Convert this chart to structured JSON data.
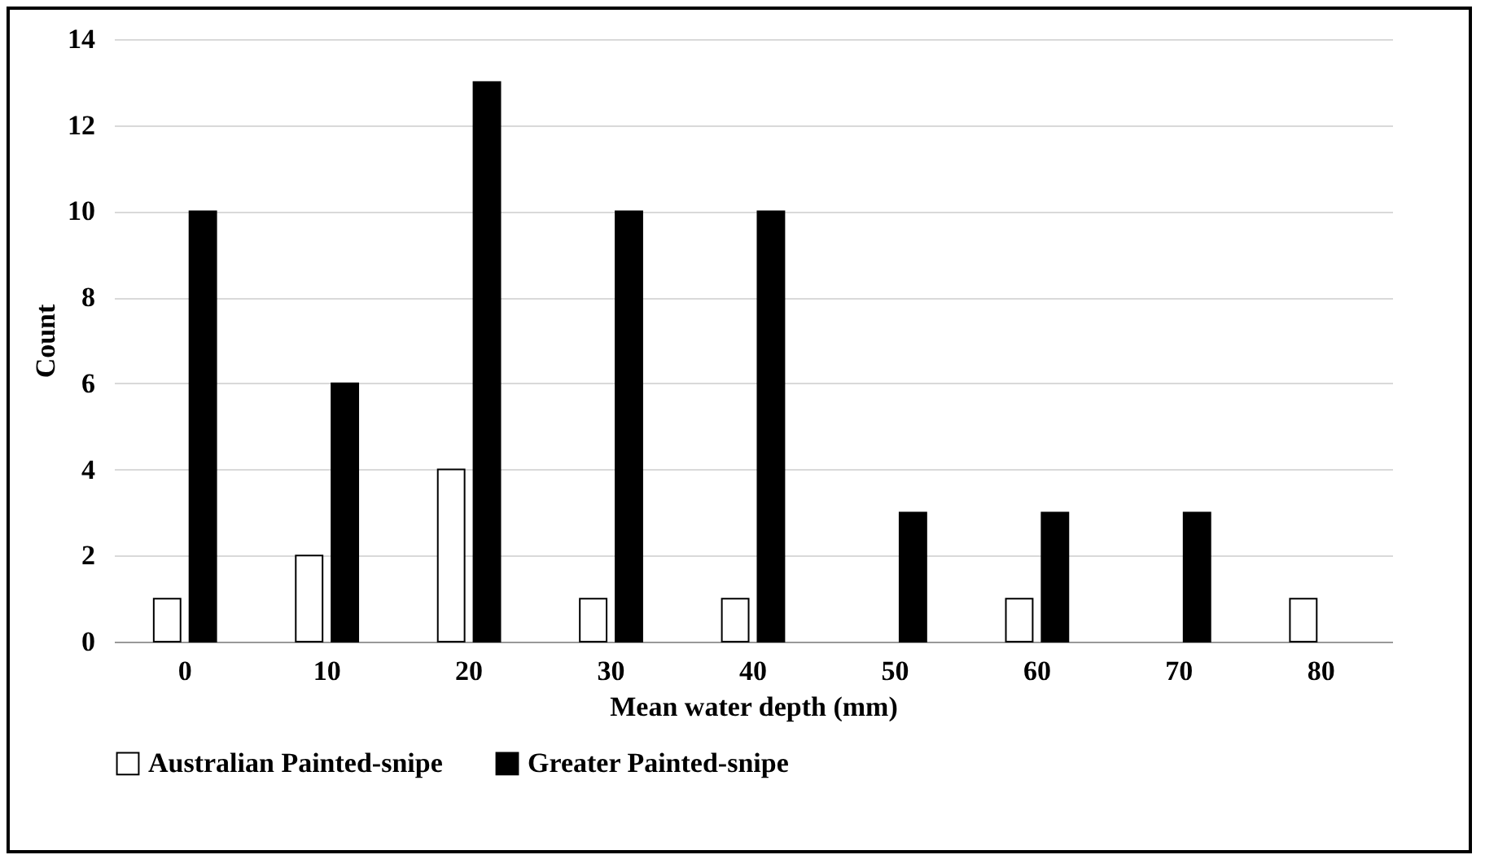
{
  "chart_data": {
    "type": "bar",
    "xlabel": "Mean water depth (mm)",
    "ylabel": "Count",
    "categories": [
      "0",
      "10",
      "20",
      "30",
      "40",
      "50",
      "60",
      "70",
      "80"
    ],
    "series": [
      {
        "name": "Australian Painted-snipe",
        "color": "#ffffff",
        "values": [
          1,
          2,
          4,
          1,
          1,
          null,
          1,
          null,
          1
        ]
      },
      {
        "name": "Greater Painted-snipe",
        "color": "#000000",
        "values": [
          10,
          6,
          13,
          10,
          10,
          3,
          3,
          3,
          null
        ]
      }
    ],
    "ylim": [
      0,
      14
    ],
    "yticks": [
      0,
      2,
      4,
      6,
      8,
      10,
      12,
      14
    ],
    "grid": "y",
    "legend": "bottom"
  }
}
